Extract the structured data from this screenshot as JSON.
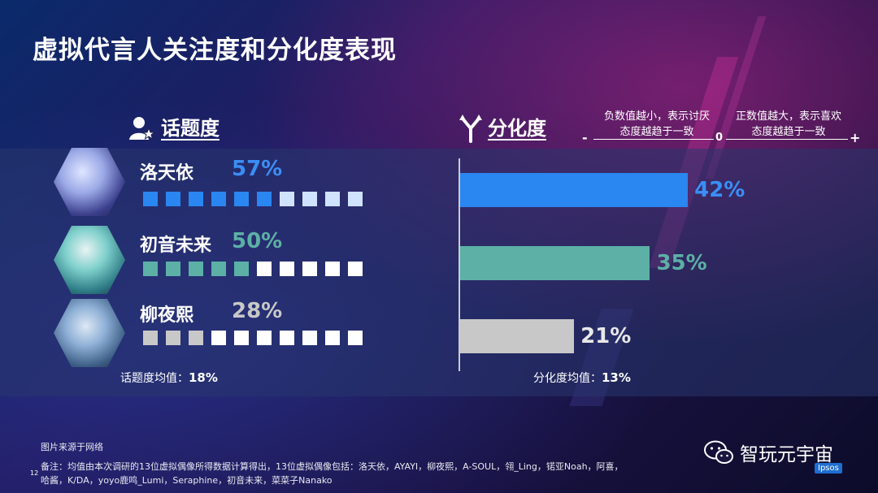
{
  "title": "虚拟代言人关注度和分化度表现",
  "colors": {
    "blue": "#2a86f0",
    "teal": "#5cb0a6",
    "gray": "#c8c8c8",
    "sq_faded": "#cfe3ff",
    "sq_white": "#ffffff"
  },
  "sections": {
    "left_label": "话题度",
    "right_label": "分化度",
    "left_icon": "person-star-icon",
    "right_icon": "fork-icon"
  },
  "scale": {
    "neg_note_line1": "负数值越小，表示讨厌",
    "neg_note_line2": "态度越趋于一致",
    "pos_note_line1": "正数值越大，表示喜欢",
    "pos_note_line2": "态度越趋于一致",
    "minus": "-",
    "zero": "0",
    "plus": "+"
  },
  "rows": [
    {
      "name": "洛天依",
      "topic_pct": "57%",
      "topic_filled": 6,
      "div_value": 42,
      "div_label": "42%",
      "color": "#2a86f0",
      "pct_color": "#3b8ef5",
      "empty_color": "#cfe3ff"
    },
    {
      "name": "初音未来",
      "topic_pct": "50%",
      "topic_filled": 5,
      "div_value": 35,
      "div_label": "35%",
      "color": "#5cb0a6",
      "pct_color": "#5cb0a6",
      "empty_color": "#ffffff"
    },
    {
      "name": "柳夜熙",
      "topic_pct": "28%",
      "topic_filled": 3,
      "div_value": 21,
      "div_label": "21%",
      "color": "#c8c8c8",
      "pct_color": "#c8c8c8",
      "empty_color": "#ffffff"
    }
  ],
  "topic_avg_label": "话题度均值：",
  "topic_avg_value": "18%",
  "div_avg_label": "分化度均值：",
  "div_avg_value": "13%",
  "footer": {
    "source": "图片来源于网络",
    "note_line1": "备注：均值由本次调研的13位虚拟偶像所得数据计算得出，13位虚拟偶像包括：洛天依，AYAYI，柳夜熙，A-SOUL，翎_Ling，锘亚Noah，阿喜，",
    "note_line2": "哈酱，K/DA，yoyo鹿鸣_Lumi，Seraphine，初音未来，菜菜子Nanako",
    "page_number": "12"
  },
  "brand": {
    "name": "智玩元宇宙",
    "icon": "wechat-icon",
    "logo": "Ipsos"
  }
}
